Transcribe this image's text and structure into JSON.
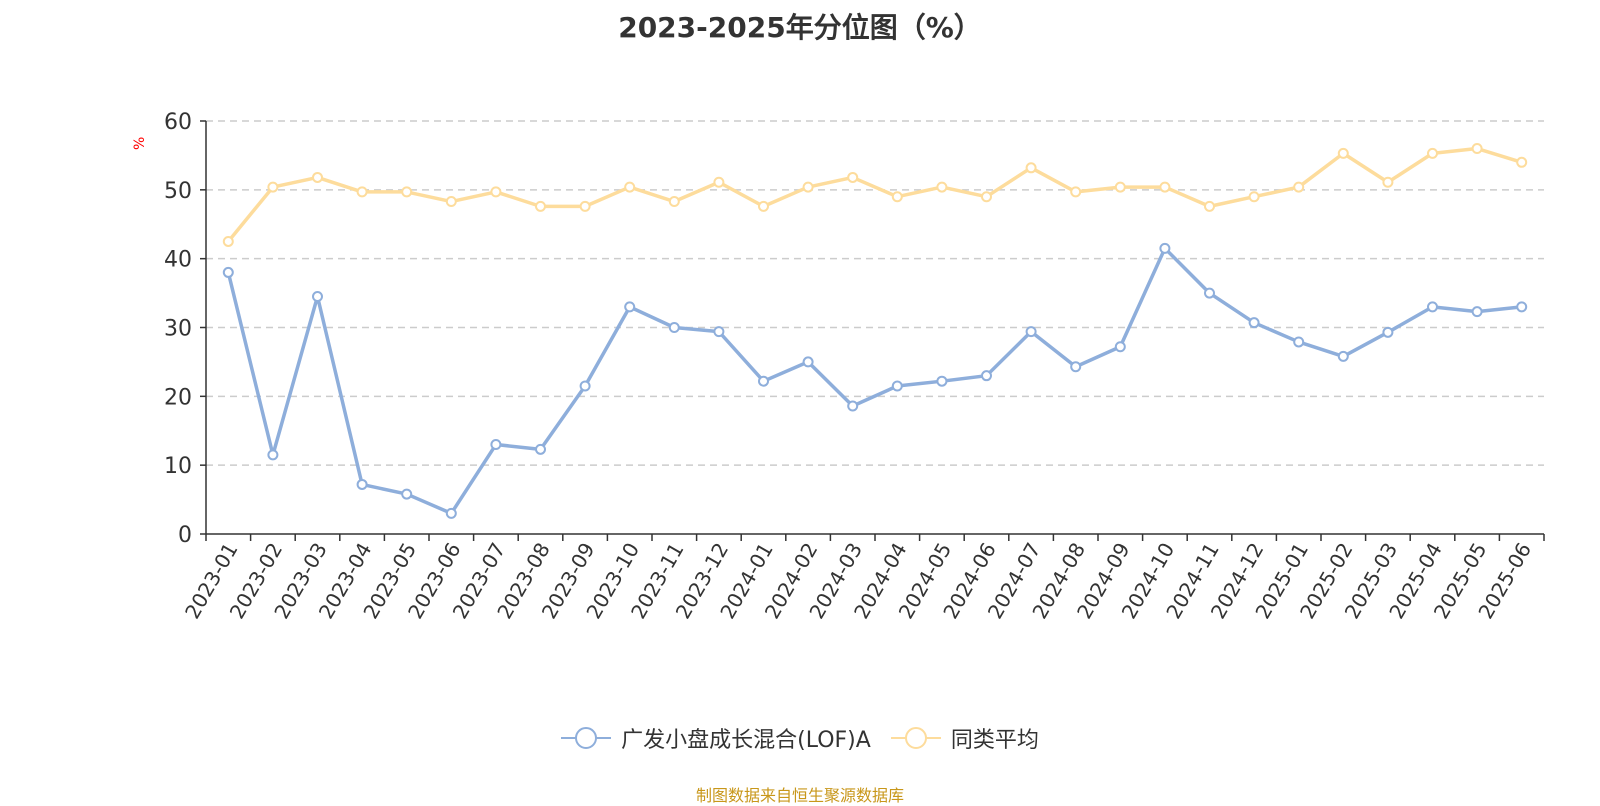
{
  "chart_data": {
    "type": "line",
    "title": "2023-2025年分位图（%）",
    "ylabel": "%",
    "xlabel": "",
    "ylim": [
      0,
      60
    ],
    "yticks": [
      0,
      10,
      20,
      30,
      40,
      50,
      60
    ],
    "grid": true,
    "legend_position": "bottom",
    "categories": [
      "2023-01",
      "2023-02",
      "2023-03",
      "2023-04",
      "2023-05",
      "2023-06",
      "2023-07",
      "2023-08",
      "2023-09",
      "2023-10",
      "2023-11",
      "2023-12",
      "2024-01",
      "2024-02",
      "2024-03",
      "2024-04",
      "2024-05",
      "2024-06",
      "2024-07",
      "2024-08",
      "2024-09",
      "2024-10",
      "2024-11",
      "2024-12",
      "2025-01",
      "2025-02",
      "2025-03",
      "2025-04",
      "2025-05",
      "2025-06"
    ],
    "series": [
      {
        "name": "广发小盘成长混合(LOF)A",
        "color": "#8eaedb",
        "values": [
          38,
          11.5,
          34.5,
          7.2,
          5.8,
          3,
          13,
          12.3,
          21.5,
          33,
          30,
          29.4,
          22.2,
          25,
          18.6,
          21.5,
          22.2,
          23,
          29.4,
          24.3,
          27.2,
          41.5,
          35,
          30.7,
          27.9,
          25.8,
          29.3,
          33,
          32.3,
          33
        ]
      },
      {
        "name": "同类平均",
        "color": "#fddc9c",
        "values": [
          42.5,
          50.4,
          51.8,
          49.7,
          49.7,
          48.3,
          49.7,
          47.6,
          47.6,
          50.4,
          48.3,
          51.1,
          47.6,
          50.4,
          51.8,
          49,
          50.4,
          49,
          53.2,
          49.7,
          50.4,
          50.4,
          47.6,
          49,
          50.4,
          55.3,
          51.1,
          55.3,
          56,
          54
        ]
      }
    ]
  },
  "source_note": "制图数据来自恒生聚源数据库"
}
